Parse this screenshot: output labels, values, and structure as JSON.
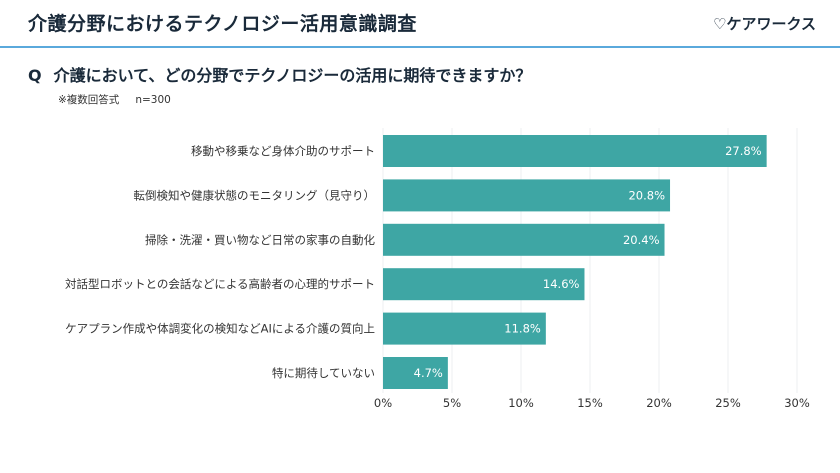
{
  "header": {
    "title": "介護分野におけるテクノロジー活用意識調査",
    "logo": "ケアワークス",
    "logo_icon": "heart-icon"
  },
  "question": {
    "mark": "Q",
    "text": "介護において、どの分野でテクノロジーの活用に期待できますか？"
  },
  "note": {
    "type": "※複数回答式",
    "n": "n=300"
  },
  "colors": {
    "bar": "#3ea6a4",
    "header_line": "#5aa9dc"
  },
  "chart_data": {
    "type": "bar",
    "orientation": "horizontal",
    "categories": [
      "移動や移乗など身体介助のサポート",
      "転倒検知や健康状態のモニタリング（見守り）",
      "掃除・洗濯・買い物など日常の家事の自動化",
      "対話型ロボットとの会話などによる高齢者の心理的サポート",
      "ケアプラン作成や体調変化の検知などAIによる介護の質向上",
      "特に期待していない"
    ],
    "values": [
      27.8,
      20.8,
      20.4,
      14.6,
      11.8,
      4.7
    ],
    "value_labels": [
      "27.8%",
      "20.8%",
      "20.4%",
      "14.6%",
      "11.8%",
      "4.7%"
    ],
    "xlim": [
      0,
      30
    ],
    "ticks": [
      0,
      5,
      10,
      15,
      20,
      25,
      30
    ],
    "tick_labels": [
      "0%",
      "5%",
      "10%",
      "15%",
      "20%",
      "25%",
      "30%"
    ],
    "grid": true
  }
}
